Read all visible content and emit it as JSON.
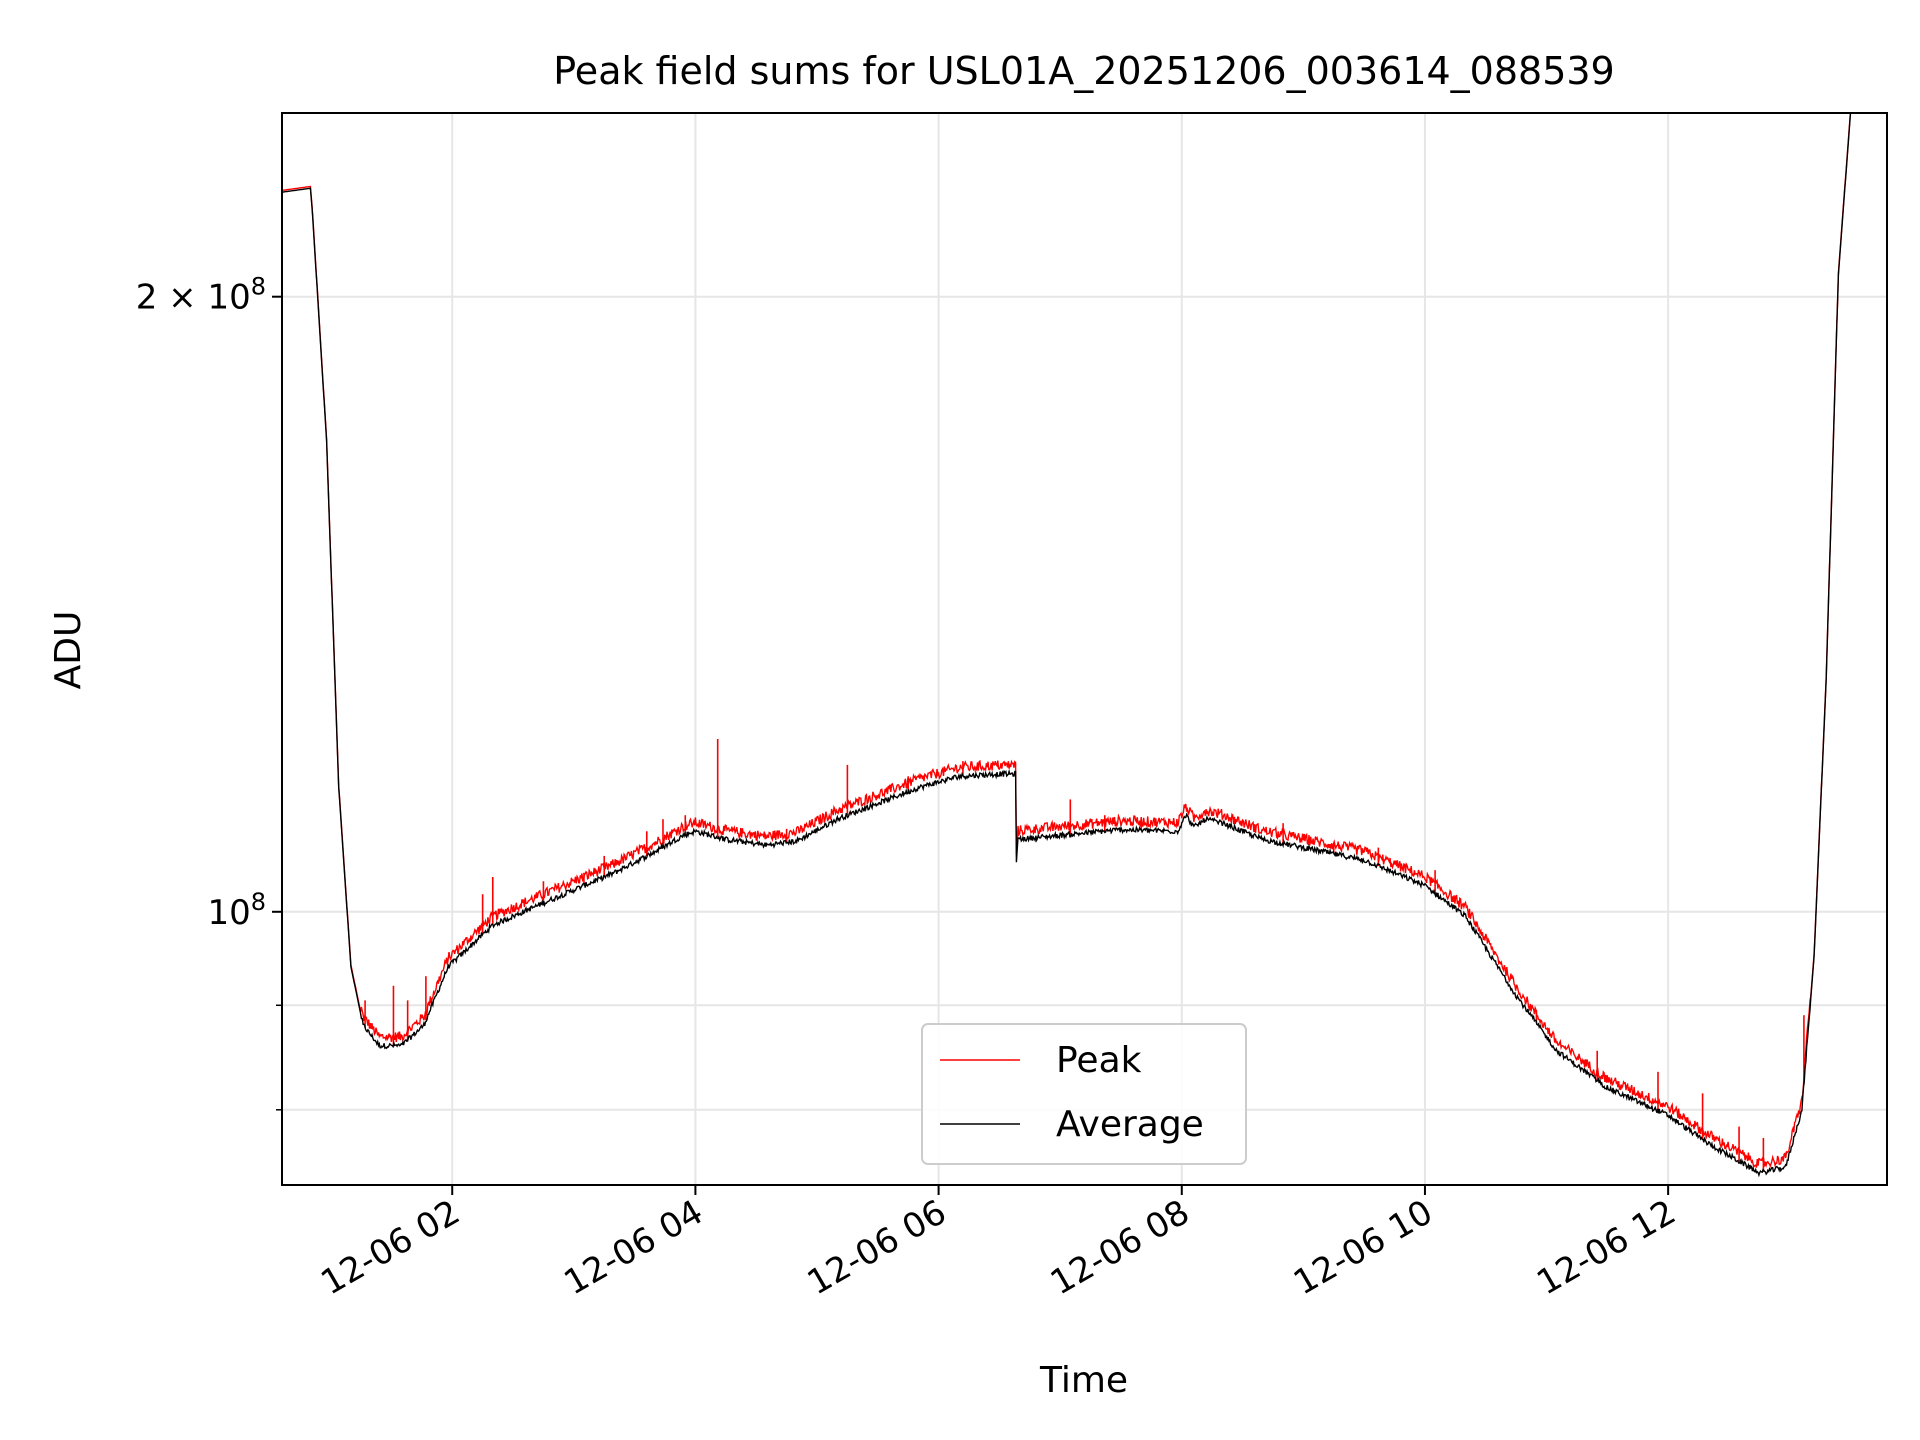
{
  "chart_data": {
    "type": "line",
    "title": "Peak field sums for USL01A_20251206_003614_088539",
    "xlabel": "Time",
    "ylabel": "ADU",
    "yscale": "log",
    "ylim": [
      73500000,
      246000000
    ],
    "xlim": [
      "12-06 00:36",
      "12-06 13:48"
    ],
    "grid": true,
    "legend": {
      "placement": "lower center",
      "entries": [
        "Peak",
        "Average"
      ]
    },
    "x_ticks": [
      {
        "value": "12-06 02:00",
        "label": "12-06 02"
      },
      {
        "value": "12-06 04:00",
        "label": "12-06 04"
      },
      {
        "value": "12-06 06:00",
        "label": "12-06 06"
      },
      {
        "value": "12-06 08:00",
        "label": "12-06 08"
      },
      {
        "value": "12-06 10:00",
        "label": "12-06 10"
      },
      {
        "value": "12-06 12:00",
        "label": "12-06 12"
      }
    ],
    "y_ticks": [
      {
        "value": 200000000,
        "label": "2 × 10",
        "exp": "8"
      },
      {
        "value": 100000000,
        "label": "10",
        "exp": "8"
      }
    ],
    "y_minor_ticks": [
      80000000,
      90000000
    ],
    "series": [
      {
        "name": "Average",
        "color": "#000000",
        "points": [
          [
            "12-06 00:36",
            225000000.0
          ],
          [
            "12-06 00:50",
            226000000.0
          ],
          [
            "12-06 00:51",
            220000000.0
          ],
          [
            "12-06 00:58",
            170000000.0
          ],
          [
            "12-06 01:04",
            115000000.0
          ],
          [
            "12-06 01:10",
            94000000.0
          ],
          [
            "12-06 01:16",
            88000000.0
          ],
          [
            "12-06 01:24",
            86000000.0
          ],
          [
            "12-06 01:35",
            86000000.0
          ],
          [
            "12-06 01:46",
            88000000.0
          ],
          [
            "12-06 01:58",
            94000000.0
          ],
          [
            "12-06 02:20",
            98500000.0
          ],
          [
            "12-06 02:40",
            100500000.0
          ],
          [
            "12-06 03:00",
            102500000.0
          ],
          [
            "12-06 03:20",
            104500000.0
          ],
          [
            "12-06 03:40",
            107000000.0
          ],
          [
            "12-06 03:54",
            109000000.0
          ],
          [
            "12-06 04:00",
            109500000.0
          ],
          [
            "12-06 04:15",
            108500000.0
          ],
          [
            "12-06 04:35",
            107800000.0
          ],
          [
            "12-06 04:50",
            108300000.0
          ],
          [
            "12-06 05:10",
            111000000.0
          ],
          [
            "12-06 05:30",
            113000000.0
          ],
          [
            "12-06 05:50",
            115000000.0
          ],
          [
            "12-06 06:10",
            116500000.0
          ],
          [
            "12-06 06:30",
            116800000.0
          ],
          [
            "12-06 06:38",
            116800000.0
          ],
          [
            "12-06 06:38",
            104000000.0
          ],
          [
            "12-06 06:39",
            108500000.0
          ],
          [
            "12-06 07:00",
            109000000.0
          ],
          [
            "12-06 07:30",
            109700000.0
          ],
          [
            "12-06 07:58",
            109500000.0
          ],
          [
            "12-06 08:02",
            111500000.0
          ],
          [
            "12-06 08:06",
            110000000.0
          ],
          [
            "12-06 08:12",
            111000000.0
          ],
          [
            "12-06 08:20",
            110500000.0
          ],
          [
            "12-06 08:40",
            108500000.0
          ],
          [
            "12-06 09:00",
            107500000.0
          ],
          [
            "12-06 09:30",
            106000000.0
          ],
          [
            "12-06 10:00",
            103000000.0
          ],
          [
            "12-06 10:20",
            99500000.0
          ],
          [
            "12-06 10:30",
            96000000.0
          ],
          [
            "12-06 10:45",
            91000000.0
          ],
          [
            "12-06 11:05",
            85500000.0
          ],
          [
            "12-06 11:30",
            82000000.0
          ],
          [
            "12-06 12:00",
            79500000.0
          ],
          [
            "12-06 12:20",
            77000000.0
          ],
          [
            "12-06 12:45",
            74500000.0
          ],
          [
            "12-06 12:58",
            75000000.0
          ],
          [
            "12-06 13:06",
            80000000.0
          ],
          [
            "12-06 13:12",
            95000000.0
          ],
          [
            "12-06 13:18",
            130000000.0
          ],
          [
            "12-06 13:24",
            205000000.0
          ],
          [
            "12-06 13:30",
            246000000.0
          ]
        ]
      },
      {
        "name": "Peak",
        "color": "#ff0000",
        "note_spikes": "sparse upward spikes above the average curve",
        "spikes": [
          [
            "12-06 01:17",
            90500000.0
          ],
          [
            "12-06 01:31",
            92000000.0
          ],
          [
            "12-06 01:38",
            90500000.0
          ],
          [
            "12-06 01:47",
            93000000.0
          ],
          [
            "12-06 02:15",
            102000000.0
          ],
          [
            "12-06 02:20",
            104000000.0
          ],
          [
            "12-06 02:45",
            103500000.0
          ],
          [
            "12-06 03:05",
            104500000.0
          ],
          [
            "12-06 03:15",
            106500000.0
          ],
          [
            "12-06 03:36",
            109500000.0
          ],
          [
            "12-06 03:44",
            111000000.0
          ],
          [
            "12-06 03:55",
            111500000.0
          ],
          [
            "12-06 04:11",
            121500000.0
          ],
          [
            "12-06 04:45",
            109800000.0
          ],
          [
            "12-06 05:15",
            118000000.0
          ],
          [
            "12-06 05:45",
            116500000.0
          ],
          [
            "12-06 06:12",
            118500000.0
          ],
          [
            "12-06 07:05",
            113500000.0
          ],
          [
            "12-06 07:22",
            111500000.0
          ],
          [
            "12-06 07:40",
            111000000.0
          ],
          [
            "12-06 08:50",
            110500000.0
          ],
          [
            "12-06 09:15",
            108000000.0
          ],
          [
            "12-06 09:37",
            107500000.0
          ],
          [
            "12-06 10:05",
            104800000.0
          ],
          [
            "12-06 10:55",
            89500000.0
          ],
          [
            "12-06 11:25",
            85500000.0
          ],
          [
            "12-06 11:55",
            83500000.0
          ],
          [
            "12-06 12:17",
            81500000.0
          ],
          [
            "12-06 12:35",
            78500000.0
          ],
          [
            "12-06 12:47",
            77500000.0
          ],
          [
            "12-06 13:07",
            89000000.0
          ]
        ]
      }
    ]
  }
}
